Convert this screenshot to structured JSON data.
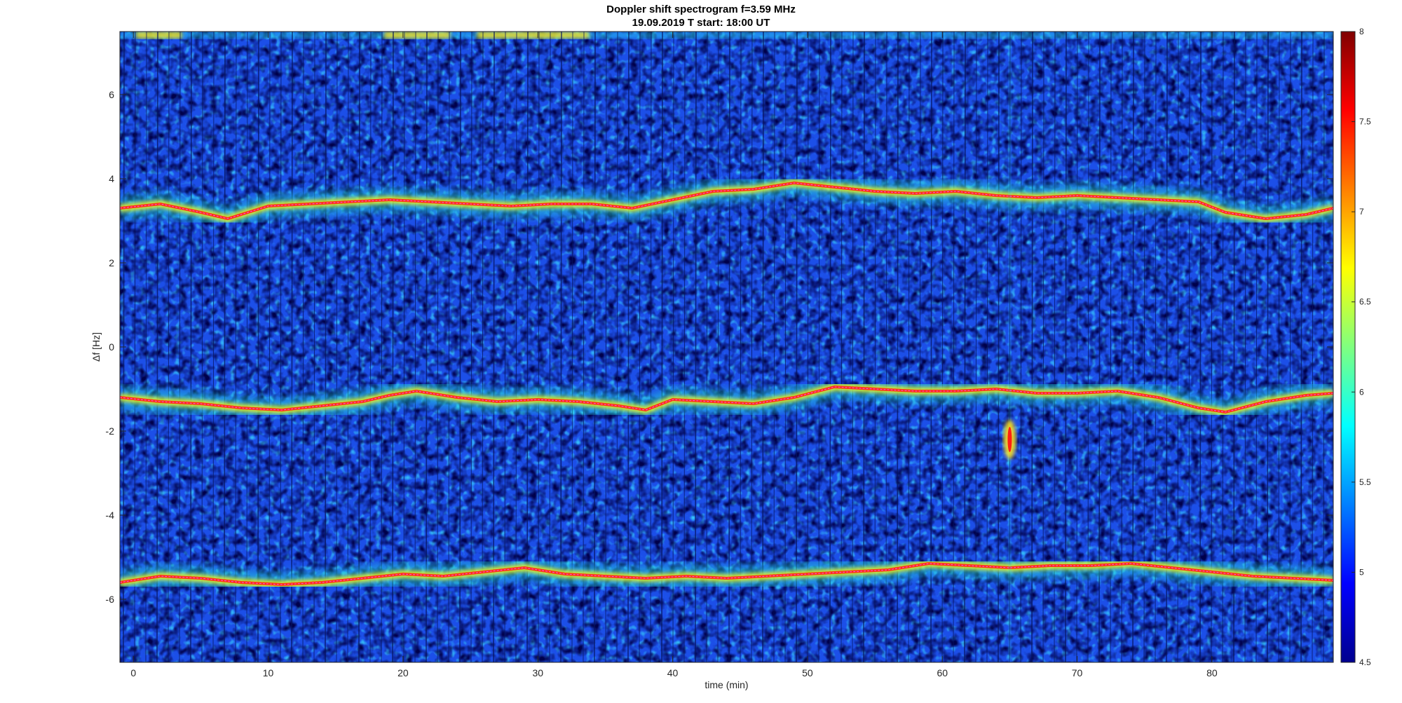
{
  "chart_data": {
    "type": "heatmap",
    "title": "Doppler shift spectrogram f=3.59 MHz",
    "subtitle": "19.09.2019   T start: 18:00 UT",
    "xlabel": "time (min)",
    "ylabel": "Δf [Hz]",
    "xlim": [
      -1,
      89
    ],
    "ylim": [
      -7.5,
      7.5
    ],
    "xticks": [
      0,
      10,
      20,
      30,
      40,
      50,
      60,
      70,
      80
    ],
    "yticks": [
      -6,
      -4,
      -2,
      0,
      2,
      4,
      6
    ],
    "colorbar": {
      "colormap": "jet",
      "clim": [
        4.5,
        8
      ],
      "ticks": [
        4.5,
        5,
        5.5,
        6,
        6.5,
        7,
        7.5,
        8
      ]
    },
    "traces": [
      {
        "x": [
          -1,
          2,
          5,
          7,
          10,
          13,
          16,
          19,
          22,
          25,
          28,
          31,
          34,
          37,
          40,
          43,
          46,
          49,
          52,
          55,
          58,
          61,
          64,
          67,
          70,
          73,
          76,
          79,
          81,
          84,
          87,
          89
        ],
        "y": [
          3.3,
          3.4,
          3.2,
          3.05,
          3.35,
          3.4,
          3.45,
          3.5,
          3.45,
          3.4,
          3.35,
          3.4,
          3.4,
          3.3,
          3.5,
          3.7,
          3.75,
          3.9,
          3.8,
          3.7,
          3.65,
          3.7,
          3.6,
          3.55,
          3.6,
          3.55,
          3.5,
          3.45,
          3.2,
          3.05,
          3.15,
          3.3
        ]
      },
      {
        "x": [
          -1,
          2,
          5,
          8,
          11,
          14,
          17,
          19,
          21,
          24,
          27,
          30,
          33,
          36,
          38,
          40,
          43,
          46,
          49,
          52,
          55,
          58,
          61,
          64,
          67,
          70,
          73,
          76,
          79,
          81,
          84,
          87,
          89
        ],
        "y": [
          -1.2,
          -1.3,
          -1.35,
          -1.45,
          -1.5,
          -1.4,
          -1.3,
          -1.15,
          -1.05,
          -1.2,
          -1.3,
          -1.25,
          -1.3,
          -1.4,
          -1.5,
          -1.25,
          -1.3,
          -1.35,
          -1.2,
          -0.95,
          -1.0,
          -1.05,
          -1.05,
          -1.0,
          -1.1,
          -1.1,
          -1.05,
          -1.2,
          -1.45,
          -1.55,
          -1.3,
          -1.15,
          -1.1
        ]
      },
      {
        "x": [
          -1,
          2,
          5,
          8,
          11,
          14,
          17,
          20,
          23,
          26,
          29,
          32,
          35,
          38,
          41,
          44,
          47,
          50,
          53,
          56,
          59,
          62,
          65,
          68,
          71,
          74,
          77,
          80,
          83,
          86,
          89
        ],
        "y": [
          -5.6,
          -5.45,
          -5.5,
          -5.6,
          -5.65,
          -5.6,
          -5.5,
          -5.4,
          -5.45,
          -5.35,
          -5.25,
          -5.4,
          -5.45,
          -5.5,
          -5.45,
          -5.5,
          -5.45,
          -5.4,
          -5.35,
          -5.3,
          -5.15,
          -5.2,
          -5.25,
          -5.2,
          -5.2,
          -5.15,
          -5.25,
          -5.35,
          -5.45,
          -5.5,
          -5.55
        ]
      }
    ],
    "spike_event": {
      "x": 65,
      "y": -2.2
    }
  }
}
